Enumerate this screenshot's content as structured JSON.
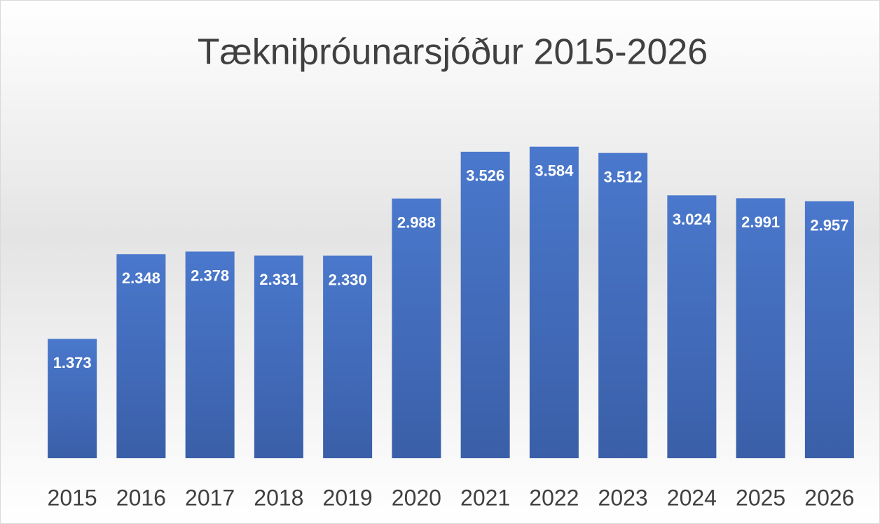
{
  "chart_data": {
    "type": "bar",
    "title": "Tækniþróunarsjóður 2015-2026",
    "categories": [
      "2015",
      "2016",
      "2017",
      "2018",
      "2019",
      "2020",
      "2021",
      "2022",
      "2023",
      "2024",
      "2025",
      "2026"
    ],
    "values": [
      1.373,
      2.348,
      2.378,
      2.331,
      2.33,
      2.988,
      3.526,
      3.584,
      3.512,
      3.024,
      2.991,
      2.957
    ],
    "value_labels": [
      "1.373",
      "2.348",
      "2.378",
      "2.331",
      "2.330",
      "2.988",
      "3.526",
      "3.584",
      "3.512",
      "3.024",
      "2.991",
      "2.957"
    ],
    "color": "#4472c4",
    "ylim": [
      0,
      4
    ]
  }
}
